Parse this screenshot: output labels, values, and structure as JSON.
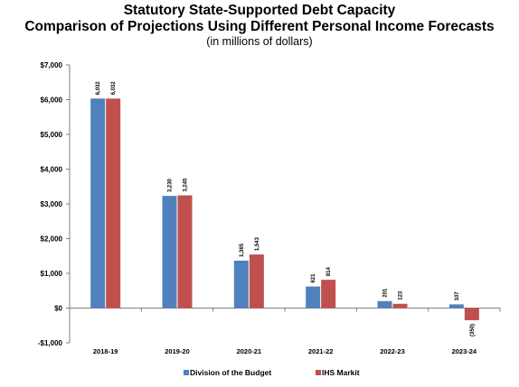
{
  "chart_data": {
    "type": "bar",
    "title": "Statutory State-Supported Debt Capacity",
    "subtitle": "Comparison of Projections Using Different Personal Income Forecasts",
    "note": "(in millions of dollars)",
    "categories": [
      "2018-19",
      "2019-20",
      "2020-21",
      "2021-22",
      "2022-23",
      "2023-24"
    ],
    "series": [
      {
        "name": "Division of the Budget",
        "color": "#4f81bd",
        "values": [
          6032,
          3230,
          1365,
          621,
          201,
          107
        ],
        "labels": [
          "6,032",
          "3,230",
          "1,365",
          "621",
          "201",
          "107"
        ]
      },
      {
        "name": "IHS Markit",
        "color": "#c0504d",
        "values": [
          6032,
          3245,
          1543,
          814,
          123,
          -350
        ],
        "labels": [
          "6,032",
          "3,245",
          "1,543",
          "814",
          "123",
          "(350)"
        ]
      }
    ],
    "ylim": [
      -1000,
      7000
    ],
    "yticks": [
      {
        "value": 7000,
        "label": "$7,000"
      },
      {
        "value": 6000,
        "label": "$6,000"
      },
      {
        "value": 5000,
        "label": "$5,000"
      },
      {
        "value": 4000,
        "label": "$4,000"
      },
      {
        "value": 3000,
        "label": "$3,000"
      },
      {
        "value": 2000,
        "label": "$2,000"
      },
      {
        "value": 1000,
        "label": "$1,000"
      },
      {
        "value": 0,
        "label": "$0"
      },
      {
        "value": -1000,
        "label": "-$1,000"
      }
    ],
    "grid": false,
    "legend": "bottom"
  }
}
